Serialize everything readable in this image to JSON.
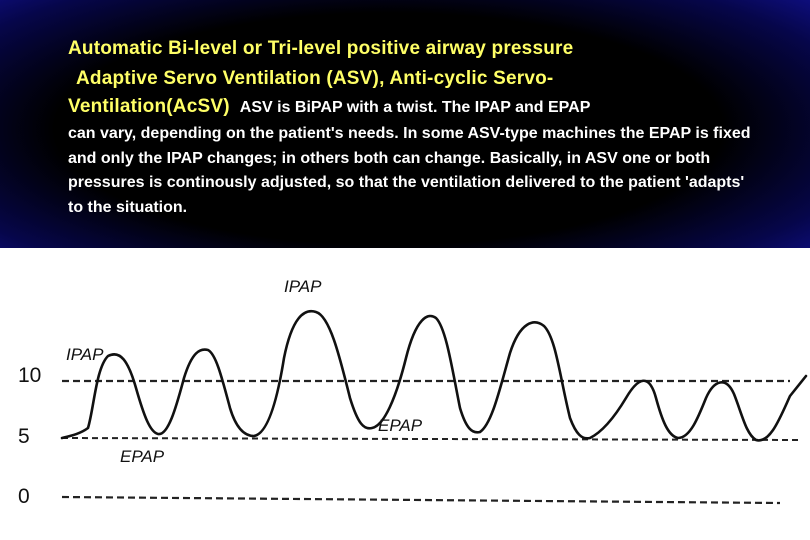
{
  "header": {
    "title_line1": "Automatic Bi-level or Tri-level positive airway pressure",
    "title_line2": "Adaptive Servo Ventilation (ASV), Anti-cyclic Servo-",
    "title_line3": "Ventilation(AcSV)",
    "description_inline": "ASV is BiPAP with a twist. The IPAP and EPAP",
    "description_rest": "can vary, depending on the patient's needs. In some ASV-type machines the EPAP is fixed and only the IPAP changes; in others both can change. Basically, in ASV one or both pressures is continously adjusted, so that the ventilation delivered to the patient 'adapts' to the situation.",
    "colors": {
      "title": "#ffff66",
      "text": "#ffffff",
      "background": "#000000",
      "edge": "#12129a"
    }
  },
  "diagram": {
    "y_axis_ticks": [
      "10",
      "5",
      "0"
    ],
    "labels": {
      "ipap_left": "IPAP",
      "ipap_top": "IPAP",
      "epap_left": "EPAP",
      "epap_middle": "EPAP"
    },
    "colors": {
      "waveform": "#111111",
      "reference_lines": "#222222"
    }
  }
}
